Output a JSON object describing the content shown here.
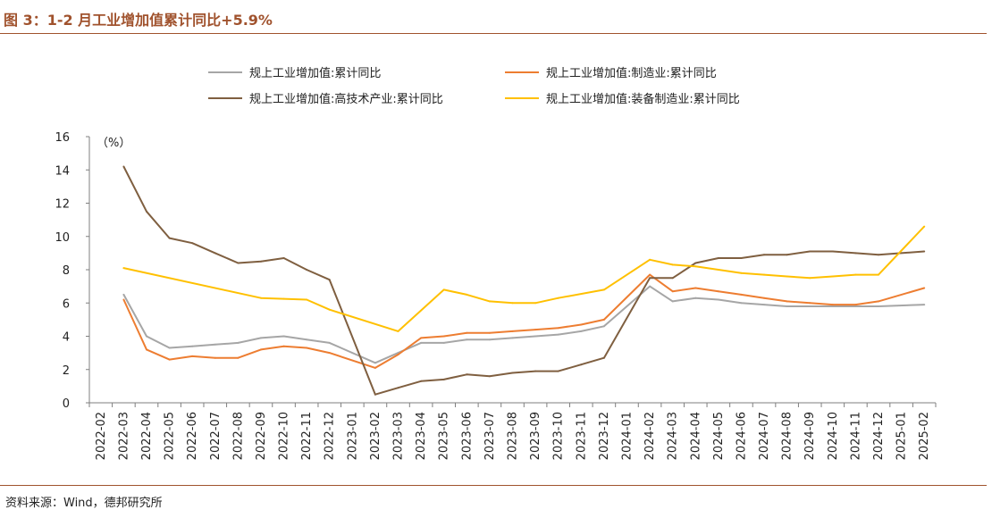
{
  "title": "图 3：1-2 月工业增加值累计同比+5.9%",
  "source": "资料来源：Wind，德邦研究所",
  "chart_data": {
    "type": "line",
    "unit_label": "（%）",
    "ylim": [
      0,
      16
    ],
    "yticks": [
      0,
      2,
      4,
      6,
      8,
      10,
      12,
      14,
      16
    ],
    "grid": false,
    "legend_position": "top",
    "categories": [
      "2022-02",
      "2022-03",
      "2022-04",
      "2022-05",
      "2022-06",
      "2022-07",
      "2022-08",
      "2022-09",
      "2022-10",
      "2022-11",
      "2022-12",
      "2023-01",
      "2023-02",
      "2023-03",
      "2023-04",
      "2023-05",
      "2023-06",
      "2023-07",
      "2023-08",
      "2023-09",
      "2023-10",
      "2023-11",
      "2023-12",
      "2024-01",
      "2024-02",
      "2024-03",
      "2024-04",
      "2024-05",
      "2024-06",
      "2024-07",
      "2024-08",
      "2024-09",
      "2024-10",
      "2024-11",
      "2024-12",
      "2025-01",
      "2025-02"
    ],
    "series": [
      {
        "name": "规上工业增加值:累计同比",
        "color": "#a6a6a6",
        "values": [
          null,
          6.5,
          4.0,
          3.3,
          3.4,
          3.5,
          3.6,
          3.9,
          4.0,
          3.8,
          3.6,
          null,
          2.4,
          3.0,
          3.6,
          3.6,
          3.8,
          3.8,
          3.9,
          4.0,
          4.1,
          4.3,
          4.6,
          null,
          7.0,
          6.1,
          6.3,
          6.2,
          6.0,
          5.9,
          5.8,
          5.8,
          5.8,
          5.8,
          5.8,
          null,
          5.9
        ]
      },
      {
        "name": "规上工业增加值:制造业:累计同比",
        "color": "#ed7d31",
        "values": [
          null,
          6.2,
          3.2,
          2.6,
          2.8,
          2.7,
          2.7,
          3.2,
          3.4,
          3.3,
          3.0,
          null,
          2.1,
          2.9,
          3.9,
          4.0,
          4.2,
          4.2,
          4.3,
          4.4,
          4.5,
          4.7,
          5.0,
          null,
          7.7,
          6.7,
          6.9,
          6.7,
          6.5,
          6.3,
          6.1,
          6.0,
          5.9,
          5.9,
          6.1,
          null,
          6.9
        ]
      },
      {
        "name": "规上工业增加值:高技术产业:累计同比",
        "color": "#7f5f40",
        "values": [
          null,
          14.2,
          11.5,
          9.9,
          9.6,
          9.0,
          8.4,
          8.5,
          8.7,
          8.0,
          7.4,
          null,
          0.5,
          0.9,
          1.3,
          1.4,
          1.7,
          1.6,
          1.8,
          1.9,
          1.9,
          2.3,
          2.7,
          null,
          7.5,
          7.5,
          8.4,
          8.7,
          8.7,
          8.9,
          8.9,
          9.1,
          9.1,
          9.0,
          8.9,
          null,
          9.1
        ]
      },
      {
        "name": "规上工业增加值:装备制造业:累计同比",
        "color": "#ffc000",
        "values": [
          null,
          8.1,
          null,
          null,
          null,
          null,
          null,
          6.3,
          6.25,
          6.2,
          5.6,
          null,
          null,
          4.3,
          null,
          6.8,
          6.5,
          6.1,
          6.0,
          6.0,
          6.3,
          null,
          6.8,
          null,
          8.6,
          8.3,
          8.2,
          8.0,
          7.8,
          7.7,
          7.6,
          7.5,
          7.6,
          7.7,
          7.7,
          null,
          10.6
        ]
      }
    ]
  }
}
